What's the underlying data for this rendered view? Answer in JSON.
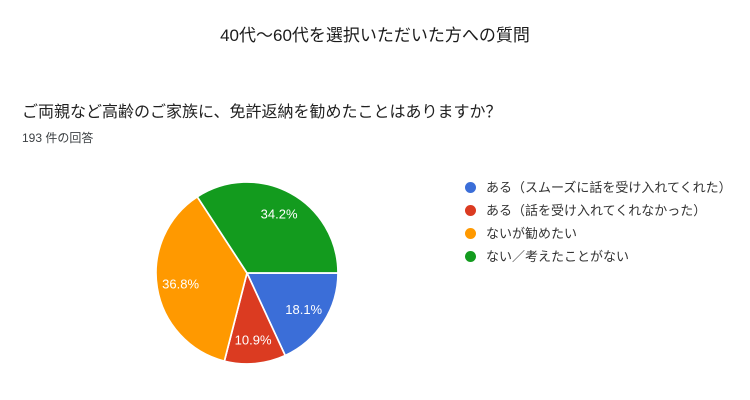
{
  "header": {
    "section_title": "40代〜60代を選択いただいた方への質問",
    "question": "ご両親など高齢のご家族に、免許返納を勧めたことはありますか？",
    "response_count": "193 件の回答"
  },
  "chart_data": {
    "type": "pie",
    "title": "ご両親など高齢のご家族に、免許返納を勧めたことはありますか？",
    "responses_label": "193 件の回答",
    "total_responses": 193,
    "legend_position": "right",
    "start_angle_deg": 0,
    "direction": "clockwise",
    "slice_label_color": "#FFFFFF",
    "slice_separator_color": "#FFFFFF",
    "slices": [
      {
        "label": "ある（スムーズに話を受け入れてくれた）",
        "percent": 18.1,
        "display": "18.1%",
        "color": "#3B6ED8"
      },
      {
        "label": "ある（話を受け入れてくれなかった）",
        "percent": 10.9,
        "display": "10.9%",
        "color": "#DB3B21"
      },
      {
        "label": "ないが勧めたい",
        "percent": 36.8,
        "display": "36.8%",
        "color": "#FF9900"
      },
      {
        "label": "ない／考えたことがない",
        "percent": 34.2,
        "display": "34.2%",
        "color": "#139B1E"
      }
    ]
  }
}
